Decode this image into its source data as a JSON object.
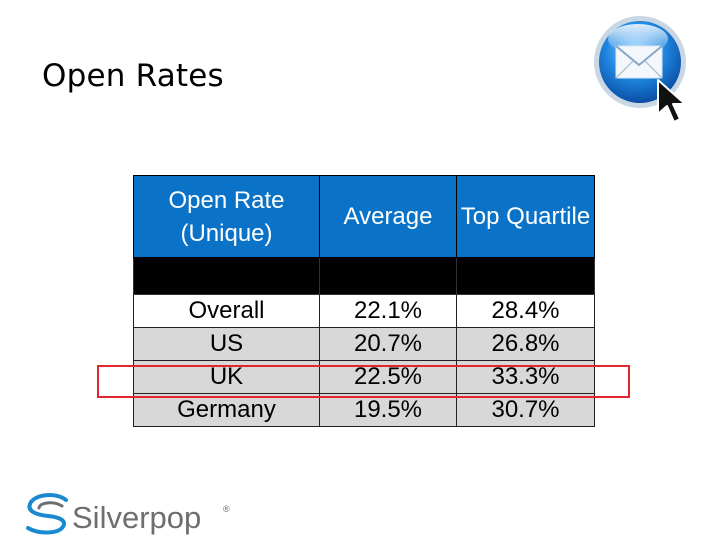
{
  "slide": {
    "title": "Open Rates"
  },
  "table": {
    "headers": [
      "Open Rate (Unique)",
      "Average",
      "Top Quartile"
    ],
    "rows": [
      {
        "label": "Overall",
        "average": "22.1%",
        "top_quartile": "28.4%"
      },
      {
        "label": "US",
        "average": "20.7%",
        "top_quartile": "26.8%"
      },
      {
        "label": "UK",
        "average": "22.5%",
        "top_quartile": "33.3%"
      },
      {
        "label": "Germany",
        "average": "19.5%",
        "top_quartile": "30.7%"
      }
    ],
    "highlighted_row": "UK"
  },
  "colors": {
    "header_blue": "#0a73c7",
    "highlight_red": "#e3252d",
    "alt_row_gray": "#d8d8d8"
  },
  "icons": {
    "top_right": "email-cursor-icon",
    "logo_mark": "silverpop-swirl-icon"
  },
  "logo": {
    "text": "Silverpop",
    "mark": "®"
  }
}
